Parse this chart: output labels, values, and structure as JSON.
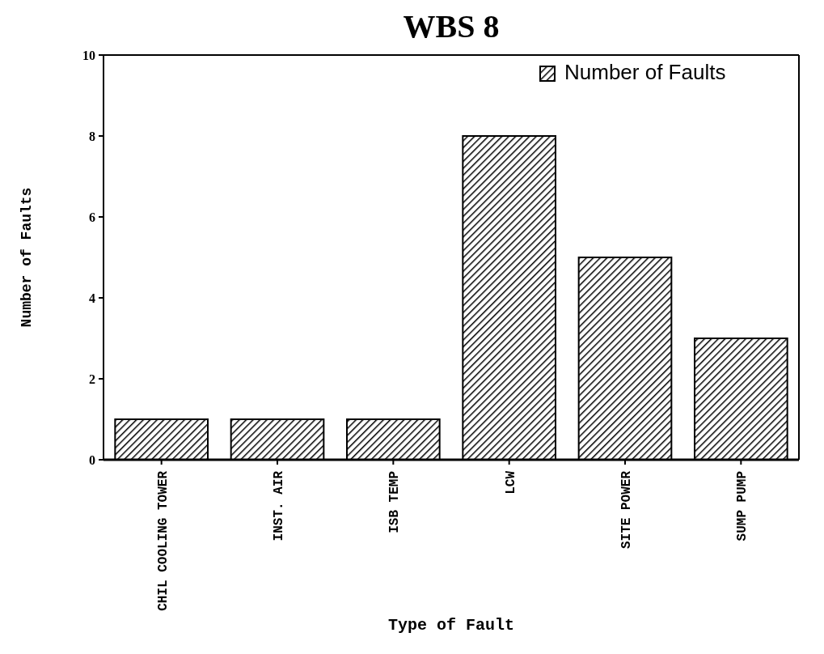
{
  "chart_data": {
    "type": "bar",
    "title": "WBS 8",
    "xlabel": "Type of Fault",
    "ylabel": "Number of Faults",
    "categories": [
      "CHIL COOLING TOWER",
      "INST. AIR",
      "ISB TEMP",
      "LCW",
      "SITE POWER",
      "SUMP PUMP"
    ],
    "series": [
      {
        "name": "Number of Faults",
        "color": "#000000",
        "values": [
          1,
          1,
          1,
          8,
          5,
          3
        ]
      }
    ],
    "ylim": [
      0,
      10
    ],
    "yticks": [
      0,
      2,
      4,
      6,
      8,
      10
    ],
    "legend": "top right"
  }
}
